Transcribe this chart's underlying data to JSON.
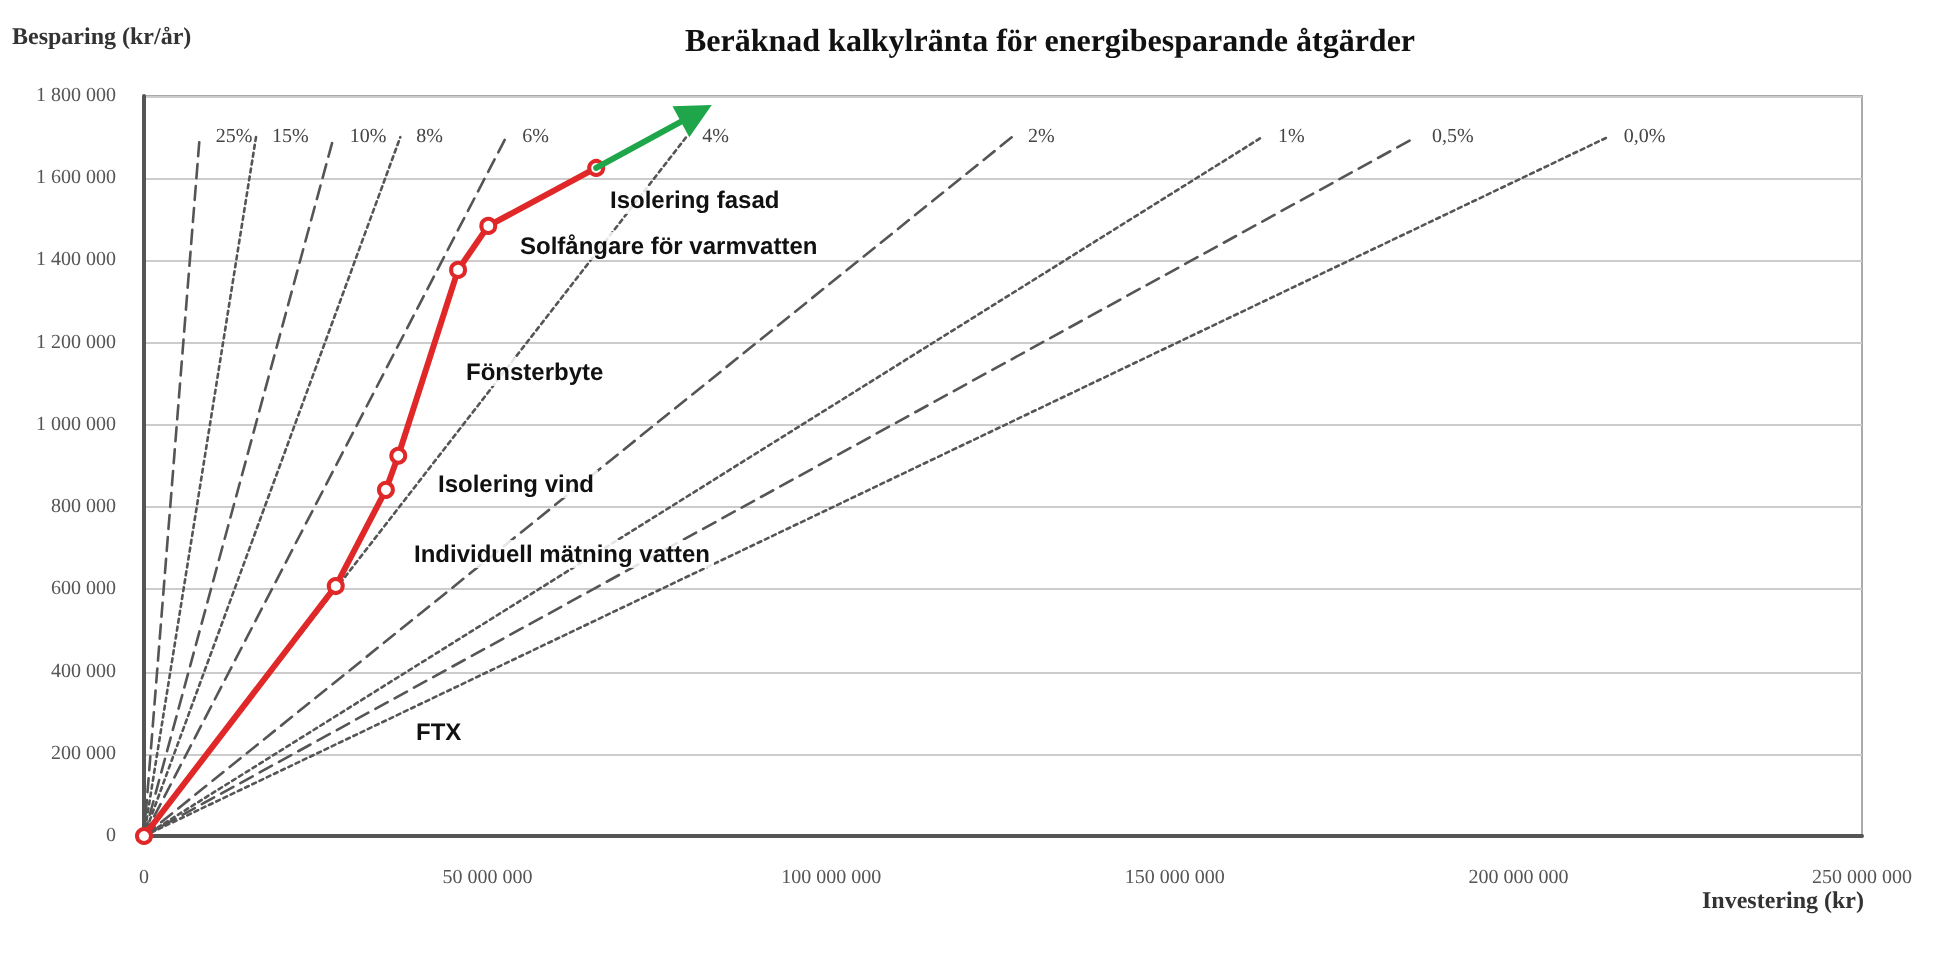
{
  "chart_data": {
    "type": "line",
    "title": "Beräknad kalkylränta för energibesparande åtgärder",
    "xlabel": "Investering (kr)",
    "ylabel": "Besparing (kr/år)",
    "xlim": [
      0,
      250000000
    ],
    "ylim": [
      0,
      1800000
    ],
    "xticks": [
      0,
      {
        "value": 50000000,
        "label": "50 000 000"
      },
      {
        "value": 100000000,
        "label": "100 000 000"
      },
      {
        "value": 150000000,
        "label": "150 000 000"
      },
      {
        "value": 200000000,
        "label": "200 000 000"
      },
      {
        "value": 250000000,
        "label": "250 000 000"
      }
    ],
    "yticks": [
      0,
      {
        "value": 200000,
        "label": "200 000"
      },
      {
        "value": 400000,
        "label": "400 000"
      },
      {
        "value": 600000,
        "label": "600 000"
      },
      {
        "value": 800000,
        "label": "800 000"
      },
      {
        "value": 1000000,
        "label": "1 000 000"
      },
      {
        "value": 1200000,
        "label": "1 200 000"
      },
      {
        "value": 1400000,
        "label": "1 400 000"
      },
      {
        "value": 1600000,
        "label": "1 600 000"
      },
      {
        "value": 1800000,
        "label": "1 800 000"
      }
    ],
    "grid": "y",
    "legend": false,
    "series": [
      {
        "name": "25%",
        "color": "#555555",
        "line_style": "dashed",
        "marker": "none",
        "x": [
          0,
          8100000
        ],
        "values": [
          0,
          1700000
        ]
      },
      {
        "name": "15%",
        "color": "#555555",
        "line_style": "dotted",
        "marker": "none",
        "x": [
          0,
          16300000
        ],
        "values": [
          0,
          1700000
        ]
      },
      {
        "name": "10%",
        "color": "#555555",
        "line_style": "dashed",
        "marker": "none",
        "x": [
          0,
          27600000
        ],
        "values": [
          0,
          1700000
        ]
      },
      {
        "name": "8%",
        "color": "#555555",
        "line_style": "dotted",
        "marker": "none",
        "x": [
          0,
          37300000
        ],
        "values": [
          0,
          1700000
        ]
      },
      {
        "name": "6%",
        "color": "#555555",
        "line_style": "dashed",
        "marker": "none",
        "x": [
          0,
          52700000
        ],
        "values": [
          0,
          1700000
        ]
      },
      {
        "name": "4%",
        "color": "#555555",
        "line_style": "dotted",
        "marker": "none",
        "x": [
          0,
          78900000
        ],
        "values": [
          0,
          1700000
        ]
      },
      {
        "name": "2%",
        "color": "#555555",
        "line_style": "dashed",
        "marker": "none",
        "x": [
          0,
          126300000
        ],
        "values": [
          0,
          1700000
        ]
      },
      {
        "name": "1%",
        "color": "#555555",
        "line_style": "dotted",
        "marker": "none",
        "x": [
          0,
          162700000
        ],
        "values": [
          0,
          1700000
        ]
      },
      {
        "name": "0,5%",
        "color": "#555555",
        "line_style": "dashed",
        "marker": "none",
        "x": [
          0,
          185100000
        ],
        "values": [
          0,
          1700000
        ]
      },
      {
        "name": "0,0%",
        "color": "#555555",
        "line_style": "dotted",
        "marker": "none",
        "x": [
          0,
          213000000
        ],
        "values": [
          0,
          1700000
        ]
      },
      {
        "color": "#e02828",
        "line_style": "solid",
        "marker": "circle",
        "x": [
          0,
          27900000,
          35200000,
          37000000,
          45700000,
          50100000,
          65800000
        ],
        "values": [
          0,
          608000,
          842000,
          925000,
          1377000,
          1484000,
          1625000
        ]
      },
      {
        "color": "#1fa64a",
        "line_style": "solid",
        "marker": "triangle",
        "x": [
          65800000,
          80300000
        ],
        "values": [
          1625000,
          1757000
        ]
      }
    ],
    "annotations": [
      "Isolering fasad",
      "Solfångare för varmvatten",
      "Fönsterbyte",
      "Isolering vind",
      "Individuell mätning vatten",
      "FTX"
    ]
  }
}
